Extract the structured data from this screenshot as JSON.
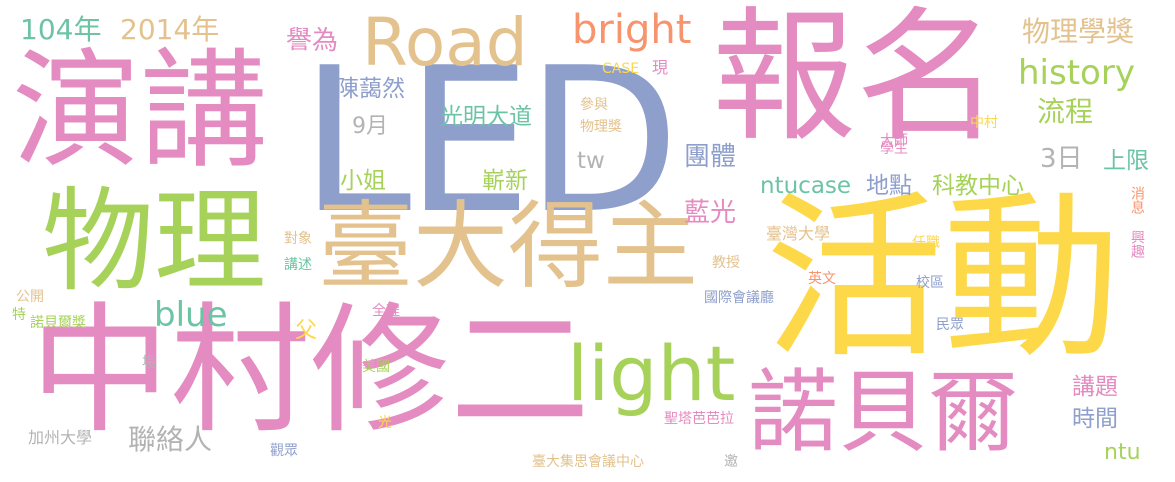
{
  "colors": {
    "pink": "#e48bc1",
    "yellow": "#fdd94a",
    "green": "#a6d25a",
    "blue": "#8e9fcc",
    "tan": "#e3c28e",
    "orange": "#f7946e",
    "teal": "#6cc4a4",
    "gray": "#b3b3b3"
  },
  "words": {
    "w01": "中村修二",
    "w02": "活動",
    "w03": "LED",
    "w04": "報名",
    "w05": "演講",
    "w06": "物理",
    "w07": "臺大得主",
    "w08": "諾貝爾",
    "w09": "Road",
    "w10": "light",
    "w11": "bright",
    "w12": "history",
    "w13": "104年",
    "w14": "2014年",
    "w15": "譽為",
    "w16": "物理學獎",
    "w17": "blue",
    "w18": "流程",
    "w19": "陳藹然",
    "w20": "光明大道",
    "w21": "9月",
    "w22": "3日",
    "w23": "上限",
    "w24": "小姐",
    "w25": "嶄新",
    "w26": "tw",
    "w27": "團體",
    "w28": "藍光",
    "w29": "ntucase",
    "w30": "地點",
    "w31": "科教中心",
    "w32": "父",
    "w33": "講題",
    "w34": "時間",
    "w35": "ntu",
    "w36": "聯絡人",
    "w37": "CASE",
    "w38": "現",
    "w39": "參與",
    "w40": "物理獎",
    "w41": "學生",
    "w42": "大師",
    "w43": "中村",
    "w44": "消息",
    "w45": "興趣",
    "w46": "臺灣大學",
    "w47": "任職",
    "w48": "教授",
    "w49": "英文",
    "w50": "校區",
    "w51": "國際會議廳",
    "w52": "民眾",
    "w53": "對象",
    "w54": "講述",
    "w55": "公開",
    "w56": "特",
    "w57": "諾貝爾獎",
    "w58": "全程",
    "w59": "場",
    "w60": "美國",
    "w61": "光",
    "w62": "聖塔芭芭拉",
    "w63": "加州大學",
    "w64": "觀眾",
    "w65": "臺大集思會議中心",
    "w66": "邀"
  }
}
